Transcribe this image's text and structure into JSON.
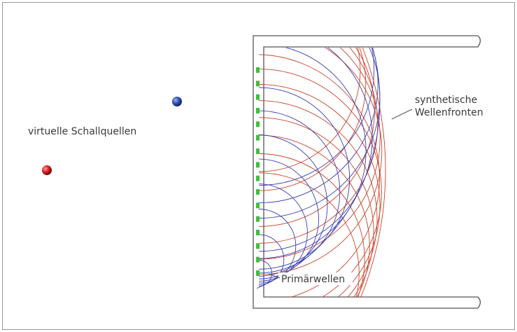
{
  "labels": {
    "virtual_sources": "virtuelle Schallquellen",
    "synthetic_line1": "synthetische",
    "synthetic_line2": "Wellenfronten",
    "primary_waves": "Primärwellen"
  },
  "colors": {
    "blue_source": "#2e4fae",
    "red_source": "#d81e1e",
    "blue_waves": "#3a3fb0",
    "red_waves": "#c9432c",
    "loudspeakers": "#3fbf3f",
    "room_walls": "#555555"
  }
}
